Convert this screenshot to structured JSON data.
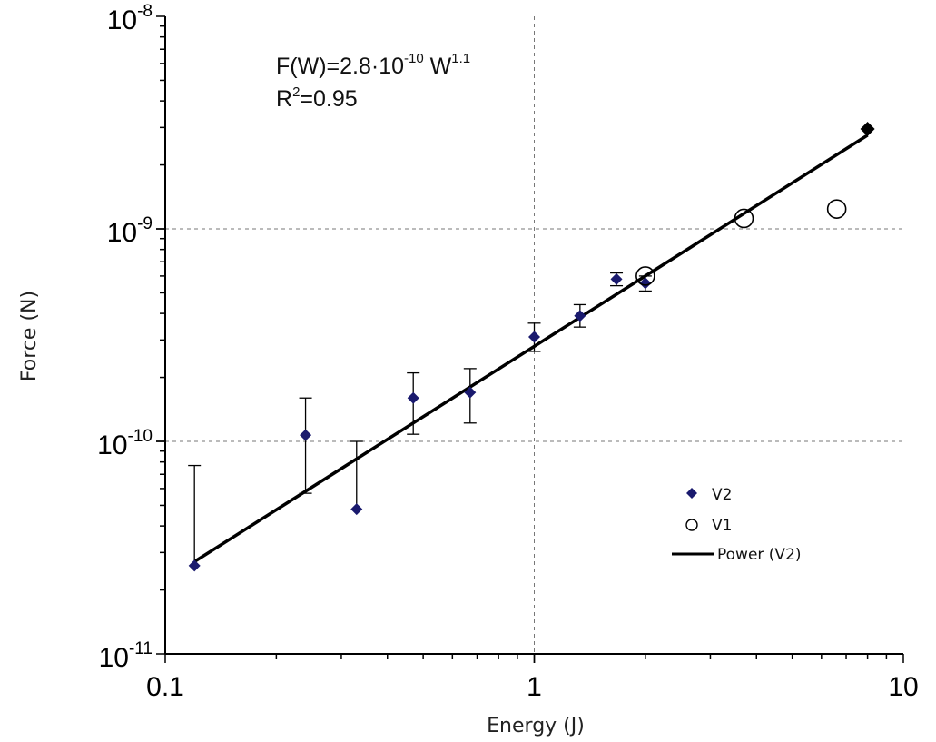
{
  "chart_data": {
    "type": "scatter",
    "xscale": "log",
    "yscale": "log",
    "xlim": [
      0.1,
      10
    ],
    "ylim": [
      1e-11,
      1e-08
    ],
    "grid": "dashed, at decades",
    "xlabel": "Energy (J)",
    "ylabel": "Force (N)",
    "x_ticks": [
      "0.1",
      "1",
      "10"
    ],
    "y_ticks": [
      {
        "base": "10",
        "exp": "-11"
      },
      {
        "base": "10",
        "exp": "-10"
      },
      {
        "base": "10",
        "exp": "-9"
      },
      {
        "base": "10",
        "exp": "-8"
      }
    ],
    "annotation": {
      "line1_prefix": "F(W)=2.8·10",
      "line1_exp1": "-10",
      "line1_mid": " W",
      "line1_exp2": "1.1",
      "line2_prefix": "R",
      "line2_sup": "2",
      "line2_suffix": "=0.95"
    },
    "legend_position": "bottom-right",
    "series": [
      {
        "name": "V2",
        "marker": "diamond",
        "color": "#1a1a6e",
        "points": [
          {
            "x": 0.12,
            "y": 2.6e-11,
            "err_low": 2.6e-11,
            "err_high": 7.7e-11
          },
          {
            "x": 0.24,
            "y": 1.07e-10,
            "err_low": 5.7e-11,
            "err_high": 1.6e-10
          },
          {
            "x": 0.33,
            "y": 4.8e-11,
            "err_low": 4.8e-11,
            "err_high": 1e-10
          },
          {
            "x": 0.47,
            "y": 1.6e-10,
            "err_low": 1.08e-10,
            "err_high": 2.1e-10
          },
          {
            "x": 0.67,
            "y": 1.7e-10,
            "err_low": 1.22e-10,
            "err_high": 2.2e-10
          },
          {
            "x": 1.0,
            "y": 3.1e-10,
            "err_low": 2.65e-10,
            "err_high": 3.6e-10
          },
          {
            "x": 1.33,
            "y": 3.9e-10,
            "err_low": 3.45e-10,
            "err_high": 4.4e-10
          },
          {
            "x": 1.67,
            "y": 5.8e-10,
            "err_low": 5.4e-10,
            "err_high": 6.2e-10
          },
          {
            "x": 2.0,
            "y": 5.55e-10,
            "err_low": 5.1e-10,
            "err_high": 6e-10
          },
          {
            "x": 8.0,
            "y": 2.95e-09,
            "err_low": null,
            "err_high": null
          }
        ]
      },
      {
        "name": "V1",
        "marker": "open-circle",
        "color": "#000000",
        "points": [
          {
            "x": 2.0,
            "y": 6e-10
          },
          {
            "x": 3.7,
            "y": 1.12e-09
          },
          {
            "x": 6.6,
            "y": 1.24e-09
          }
        ]
      },
      {
        "name": "Power (V2)",
        "type": "line",
        "color": "#000000",
        "fit": {
          "coefficient": 2.8e-10,
          "exponent": 1.1
        },
        "x_range": [
          0.12,
          8.0
        ]
      }
    ]
  }
}
